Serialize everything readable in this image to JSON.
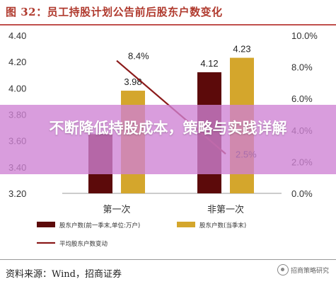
{
  "title": "图 32：员工持股计划公告前后股东户数变化",
  "banner": "不断降低持股成本，策略与实践详解",
  "source": "资料来源：Wind，招商证券",
  "watermark": "招商策略研究",
  "colors": {
    "series_before": "#5c0a0a",
    "series_after": "#d4a62c",
    "line": "#8b1a1a",
    "title": "#b03a2e",
    "banner": "#ce82d4"
  },
  "chart_data": {
    "type": "bar",
    "categories": [
      "第一次",
      "非第一次"
    ],
    "series": [
      {
        "name": "股东户数(前一季末,单位:万户)",
        "values": [
          3.65,
          4.12
        ],
        "axis": "left",
        "show_labels": [
          false,
          true
        ]
      },
      {
        "name": "股东户数(当季末)",
        "values": [
          3.98,
          4.23
        ],
        "axis": "left",
        "show_labels": [
          true,
          true
        ]
      },
      {
        "name": "平均股东户数变动",
        "type": "line",
        "values": [
          0.084,
          0.025
        ],
        "axis": "right",
        "labels": [
          "8.4%",
          "2.5%"
        ]
      }
    ],
    "left_axis": {
      "min": 3.2,
      "max": 4.4,
      "ticks": [
        "3.20",
        "3.40",
        "3.60",
        "3.80",
        "4.00",
        "4.20",
        "4.40"
      ]
    },
    "right_axis": {
      "min": 0.0,
      "max": 0.1,
      "ticks": [
        "0.0%",
        "2.0%",
        "4.0%",
        "6.0%",
        "8.0%",
        "10.0%"
      ]
    },
    "grid": false,
    "legend_position": "bottom"
  }
}
